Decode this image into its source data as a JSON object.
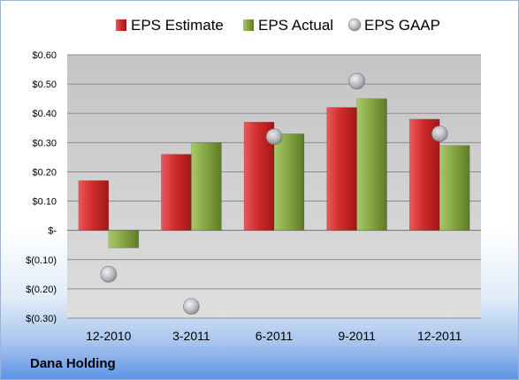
{
  "company": "Dana Holding",
  "chart_data": {
    "type": "bar",
    "categories": [
      "12-2010",
      "3-2011",
      "6-2011",
      "9-2011",
      "12-2011"
    ],
    "series": [
      {
        "name": "EPS Estimate",
        "kind": "bar",
        "color": "#cc2a2a",
        "values": [
          0.17,
          0.26,
          0.37,
          0.42,
          0.38
        ]
      },
      {
        "name": "EPS Actual",
        "kind": "bar",
        "color": "#7ea23c",
        "values": [
          -0.06,
          0.3,
          0.33,
          0.45,
          0.29
        ]
      },
      {
        "name": "EPS GAAP",
        "kind": "scatter",
        "color": "#b9bcc2",
        "values": [
          -0.15,
          -0.26,
          0.32,
          0.51,
          0.33
        ]
      }
    ],
    "ylim": [
      -0.3,
      0.6
    ],
    "yticks": [
      0.6,
      0.5,
      0.4,
      0.3,
      0.2,
      0.1,
      0,
      -0.1,
      -0.2,
      -0.3
    ],
    "ytick_labels": [
      "$0.60",
      "$0.50",
      "$0.40",
      "$0.30",
      "$0.20",
      "$0.10",
      "$-",
      "$(0.10)",
      "$(0.20)",
      "$(0.30)"
    ],
    "grid": true,
    "legend": "top"
  }
}
